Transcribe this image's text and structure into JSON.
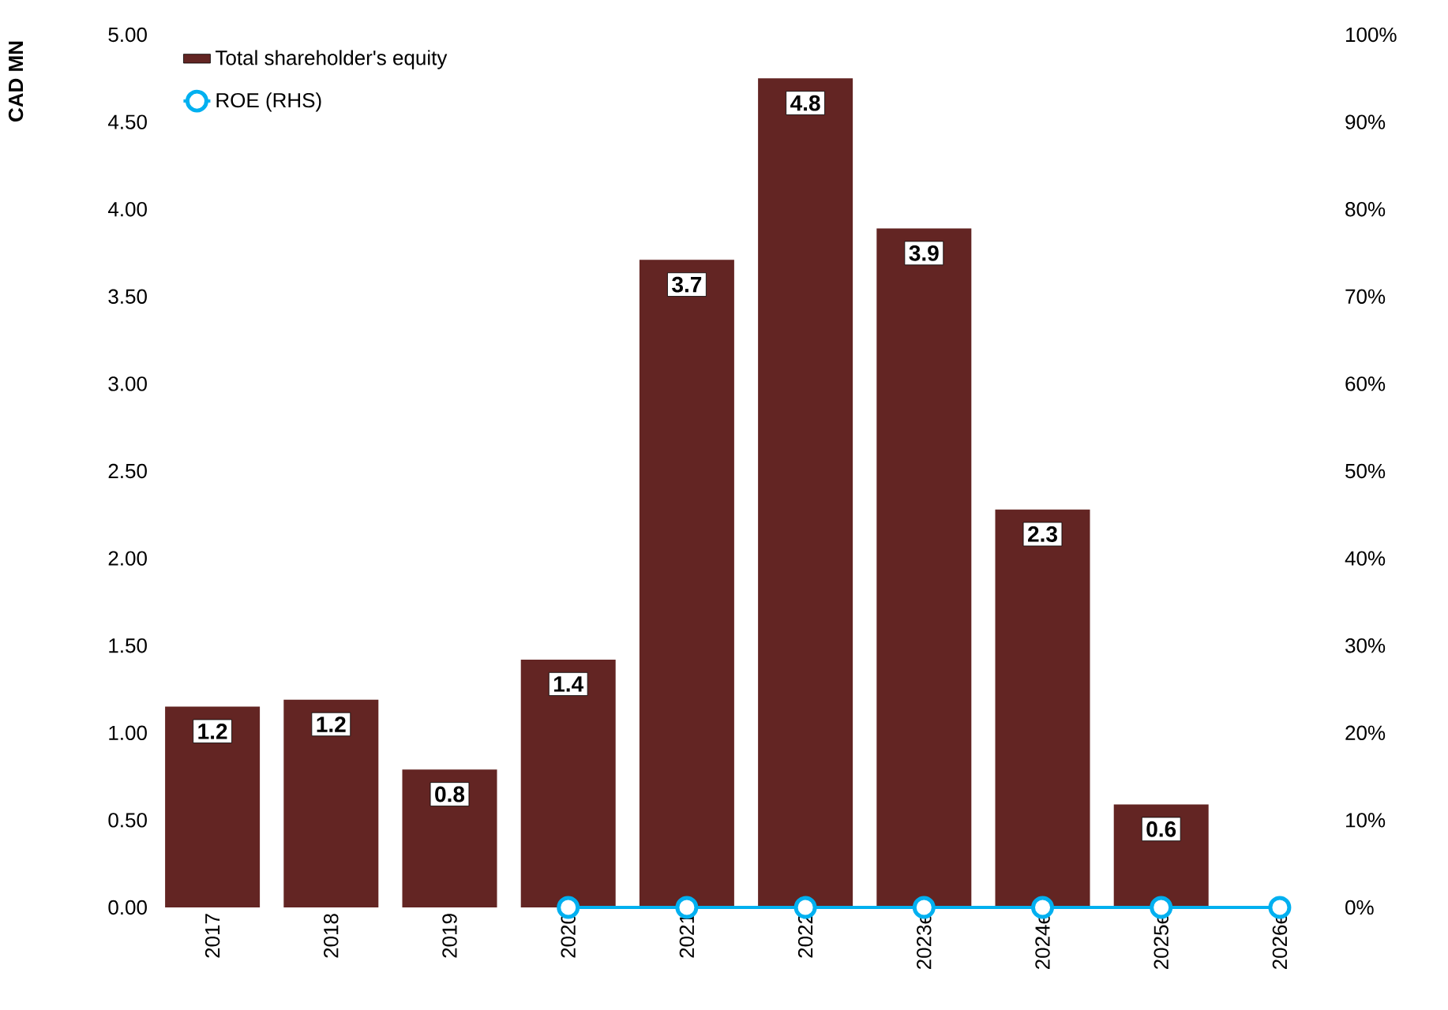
{
  "chart_data": {
    "type": "bar",
    "ylabel": "CAD MN",
    "categories": [
      "2017",
      "2018",
      "2019",
      "2020",
      "2021",
      "2022",
      "2023e",
      "2024e",
      "2025e",
      "2026e"
    ],
    "series": [
      {
        "name": "Total shareholder's equity",
        "color": "#632523",
        "values": [
          1.15,
          1.19,
          0.79,
          1.42,
          3.71,
          4.75,
          3.89,
          2.28,
          0.59,
          null
        ],
        "value_labels": [
          "1.2",
          "1.2",
          "0.8",
          "1.4",
          "3.7",
          "4.8",
          "3.9",
          "2.3",
          "0.6",
          null
        ]
      },
      {
        "name": "ROE (RHS)",
        "type": "line",
        "axis": "y2",
        "color": "#00b0f0",
        "marker": "circle",
        "values": [
          null,
          null,
          null,
          0,
          0,
          0,
          0,
          0,
          0,
          0
        ]
      }
    ],
    "ylim": [
      0,
      5
    ],
    "yticks": [
      {
        "value": 0,
        "label": "0.00"
      },
      {
        "value": 0.5,
        "label": "0.50"
      },
      {
        "value": 1,
        "label": "1.00"
      },
      {
        "value": 1.5,
        "label": "1.50"
      },
      {
        "value": 2,
        "label": "2.00"
      },
      {
        "value": 2.5,
        "label": "2.50"
      },
      {
        "value": 3,
        "label": "3.00"
      },
      {
        "value": 3.5,
        "label": "3.50"
      },
      {
        "value": 4,
        "label": "4.00"
      },
      {
        "value": 4.5,
        "label": "4.50"
      },
      {
        "value": 5,
        "label": "5.00"
      }
    ],
    "y2lim": [
      0,
      100
    ],
    "y2ticks": [
      {
        "value": 0,
        "label": "0%"
      },
      {
        "value": 10,
        "label": "10%"
      },
      {
        "value": 20,
        "label": "20%"
      },
      {
        "value": 30,
        "label": "30%"
      },
      {
        "value": 40,
        "label": "40%"
      },
      {
        "value": 50,
        "label": "50%"
      },
      {
        "value": 60,
        "label": "60%"
      },
      {
        "value": 70,
        "label": "70%"
      },
      {
        "value": 80,
        "label": "80%"
      },
      {
        "value": 90,
        "label": "90%"
      },
      {
        "value": 100,
        "label": "100%"
      }
    ],
    "legend": "top left",
    "grid": false
  }
}
